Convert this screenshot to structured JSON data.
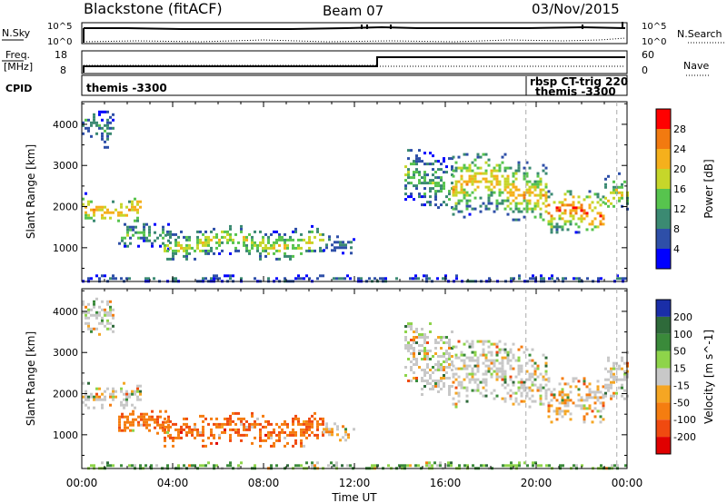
{
  "header": {
    "title": "Blackstone (fitACF)",
    "beam": "Beam 07",
    "date": "03/Nov/2015"
  },
  "panels": {
    "nsky": {
      "label": "N.Sky",
      "ticks": [
        "10^5",
        "10^0"
      ],
      "right_label": "N.Search",
      "right_ticks": [
        "10^5",
        "10^0"
      ]
    },
    "freq": {
      "label_line1": "Freq.",
      "label_line2": "[MHz]",
      "ticks": [
        "18",
        "8"
      ],
      "right_label": "Nave",
      "right_ticks": [
        "60",
        "0"
      ]
    },
    "cpid": {
      "label": "CPID",
      "segments": [
        "themis -3300",
        "rbsp CT-trig 220",
        "themis -3300"
      ]
    }
  },
  "colors": {
    "power": [
      "#0000ff",
      "#2e4fa8",
      "#3b8a72",
      "#57c44e",
      "#c6d62a",
      "#f5b01c",
      "#f27a10",
      "#ff0000"
    ],
    "velocity": [
      "#1a2ea8",
      "#2e6a3a",
      "#3a8a3a",
      "#8ed44a",
      "#c8c8c8",
      "#f5a623",
      "#f57d10",
      "#f04a10",
      "#e00000"
    ]
  },
  "chart_data": [
    {
      "type": "heatmap",
      "name": "power",
      "ylabel": "Slant Range [km]",
      "yticks": [
        1000,
        2000,
        3000,
        4000
      ],
      "ylim": [
        180,
        4550
      ],
      "xlim": [
        0,
        24
      ],
      "colorbar_label": "Power [dB]",
      "colorbar_ticks": [
        4,
        8,
        12,
        16,
        20,
        24,
        28
      ],
      "colorbar_range": [
        0,
        32
      ],
      "echo_bands": [
        {
          "t0": 0.0,
          "t1": 1.4,
          "r0": 3450,
          "r1": 4400,
          "v": 10
        },
        {
          "t0": 0.0,
          "t1": 2.6,
          "r0": 1650,
          "r1": 2350,
          "v": 24
        },
        {
          "t0": 1.6,
          "t1": 3.8,
          "r0": 1000,
          "r1": 1600,
          "v": 14
        },
        {
          "t0": 3.6,
          "t1": 10.6,
          "r0": 750,
          "r1": 1550,
          "v": 19
        },
        {
          "t0": 10.6,
          "t1": 12.0,
          "r0": 900,
          "r1": 1300,
          "v": 10
        },
        {
          "t0": 14.2,
          "t1": 16.3,
          "r0": 2000,
          "r1": 3400,
          "v": 14
        },
        {
          "t0": 16.3,
          "t1": 20.5,
          "r0": 1700,
          "r1": 3300,
          "v": 22
        },
        {
          "t0": 20.5,
          "t1": 23.0,
          "r0": 1250,
          "r1": 2400,
          "v": 27
        },
        {
          "t0": 23.0,
          "t1": 24.0,
          "r0": 1900,
          "r1": 2900,
          "v": 20
        },
        {
          "t0": 0.0,
          "t1": 24.0,
          "r0": 180,
          "r1": 350,
          "v": 8
        }
      ]
    },
    {
      "type": "heatmap",
      "name": "velocity",
      "ylabel": "Slant Range [km]",
      "xlabel": "Time UT",
      "xticks": [
        "00:00",
        "04:00",
        "08:00",
        "12:00",
        "16:00",
        "20:00",
        "00:00"
      ],
      "yticks": [
        1000,
        2000,
        3000,
        4000
      ],
      "ylim": [
        180,
        4550
      ],
      "xlim": [
        0,
        24
      ],
      "colorbar_label": "Velocity [m s^-1]",
      "colorbar_ticks": [
        200,
        100,
        50,
        15,
        -15,
        -50,
        -100,
        -200
      ],
      "echo_bands": [
        {
          "t0": 0.0,
          "t1": 1.4,
          "r0": 3450,
          "r1": 4400,
          "v": 0
        },
        {
          "t0": 0.0,
          "t1": 2.6,
          "r0": 1650,
          "r1": 2350,
          "v": 0
        },
        {
          "t0": 1.6,
          "t1": 3.8,
          "r0": 1000,
          "r1": 1600,
          "v": -60
        },
        {
          "t0": 3.6,
          "t1": 10.6,
          "r0": 750,
          "r1": 1550,
          "v": -70
        },
        {
          "t0": 10.6,
          "t1": 12.0,
          "r0": 900,
          "r1": 1300,
          "v": -20
        },
        {
          "t0": 14.2,
          "t1": 16.3,
          "r0": 2000,
          "r1": 3800,
          "v": 0
        },
        {
          "t0": 16.3,
          "t1": 20.5,
          "r0": 1700,
          "r1": 3300,
          "v": 0
        },
        {
          "t0": 20.5,
          "t1": 23.0,
          "r0": 1250,
          "r1": 2400,
          "v": -20
        },
        {
          "t0": 23.0,
          "t1": 24.0,
          "r0": 1900,
          "r1": 3100,
          "v": 0
        },
        {
          "t0": 0.0,
          "t1": 24.0,
          "r0": 180,
          "r1": 350,
          "v": 30
        }
      ]
    }
  ]
}
